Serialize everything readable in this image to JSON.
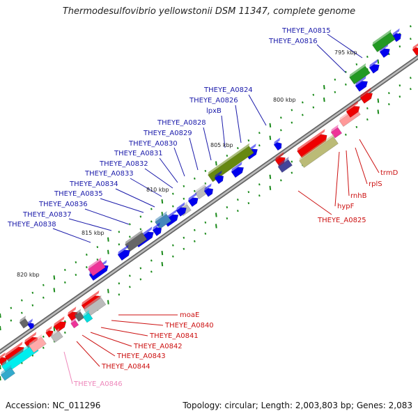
{
  "title": "Thermodesulfovibrio yellowstonii DSM 11347, complete genome",
  "footer": {
    "accession": "Accession: NC_011296",
    "summary": "Topology: circular; Length: 2,003,803 bp; Genes: 2,083"
  },
  "colors": {
    "backbone": "#8c8c8c",
    "forward_strand": "#0000ee",
    "reverse_strand": "#ee0000",
    "forward_label": "#1a1aaa",
    "reverse_label": "#cc1111",
    "pseudo_label": "#ee88bb",
    "ticks": "#1a8a1a"
  },
  "kbp_marks": [
    "795 kbp",
    "800 kbp",
    "805 kbp",
    "810 kbp",
    "815 kbp",
    "820 kbp"
  ],
  "forward_labels": [
    "THEYE_A0815",
    "THEYE_A0816",
    "THEYE_A0824",
    "THEYE_A0826",
    "lpxB",
    "THEYE_A0828",
    "THEYE_A0829",
    "THEYE_A0830",
    "THEYE_A0831",
    "THEYE_A0832",
    "THEYE_A0833",
    "THEYE_A0834",
    "THEYE_A0835",
    "THEYE_A0836",
    "THEYE_A0837",
    "THEYE_A0838"
  ],
  "reverse_labels": [
    "trmD",
    "rplS",
    "rnhB",
    "hypF",
    "THEYE_A0825",
    "moaE",
    "THEYE_A0840",
    "THEYE_A0841",
    "THEYE_A0842",
    "THEYE_A0843",
    "THEYE_A0844",
    "THEYE_A0846"
  ]
}
